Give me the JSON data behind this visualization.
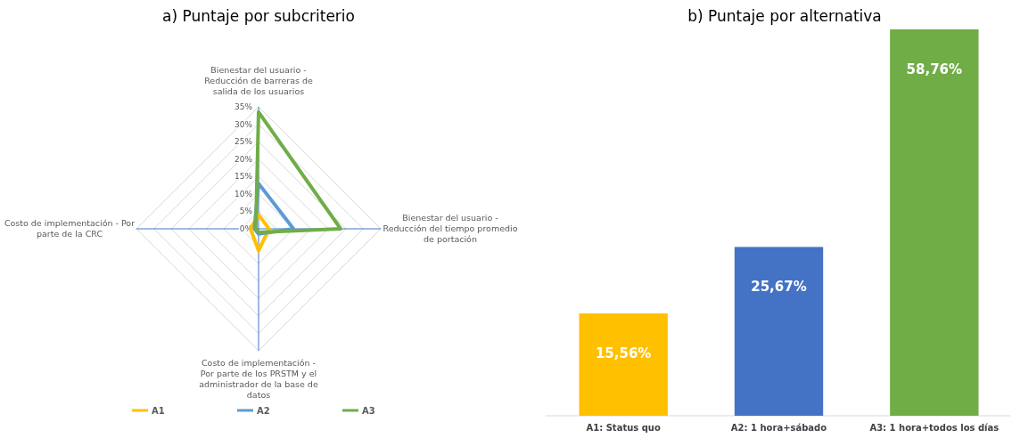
{
  "chart_data": [
    {
      "type": "radar",
      "title": "a) Puntaje por subcriterio",
      "categories": [
        "Bienestar del usuario - Reducción de barreras de salida de los usuarios",
        "Bienestar del usuario - Reducción del tiempo promedio de portación",
        "Costo de implementación - Por parte de los PRSTM y el administrador de la base de datos",
        "Costo de implementación - Por parte de la CRC"
      ],
      "series": [
        {
          "name": "A1",
          "color": "#ffc000",
          "values": [
            4,
            3,
            6.3,
            2.3
          ]
        },
        {
          "name": "A2",
          "color": "#5b9bd5",
          "values": [
            13,
            10,
            1.5,
            1.2
          ]
        },
        {
          "name": "A3",
          "color": "#70ad47",
          "values": [
            33.5,
            23.5,
            1,
            0.8
          ]
        }
      ],
      "ylim": [
        0,
        35
      ],
      "yticks": [
        {
          "value": 0,
          "label": "0%"
        },
        {
          "value": 5,
          "label": "5%"
        },
        {
          "value": 10,
          "label": "10%"
        },
        {
          "value": 15,
          "label": "15%"
        },
        {
          "value": 20,
          "label": "20%"
        },
        {
          "value": 25,
          "label": "25%"
        },
        {
          "value": 30,
          "label": "30%"
        },
        {
          "value": 35,
          "label": "35%"
        }
      ],
      "grid": true,
      "legend": "bottom",
      "marker": "none"
    },
    {
      "type": "bar",
      "title": "b) Puntaje por alternativa",
      "categories": [
        "A1: Status quo",
        "A2: 1 hora+sábado",
        "A3: 1 hora+todos los días"
      ],
      "values": [
        15.56,
        25.67,
        58.76
      ],
      "colors": [
        "#ffc000",
        "#4472c4",
        "#70ad47"
      ],
      "value_labels": [
        "15,56%",
        "25,67%",
        "58,76%"
      ]
    }
  ]
}
